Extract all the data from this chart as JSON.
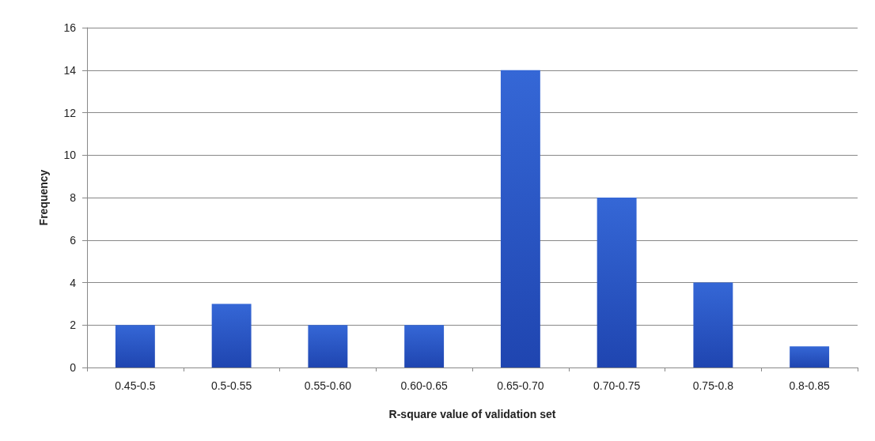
{
  "chart_data": {
    "type": "bar",
    "xlabel": "R-square value of validation set",
    "ylabel": "Frequency",
    "categories": [
      "0.45-0.5",
      "0.5-0.55",
      "0.55-0.60",
      "0.60-0.65",
      "0.65-0.70",
      "0.70-0.75",
      "0.75-0.8",
      "0.8-0.85"
    ],
    "values": [
      2,
      3,
      2,
      2,
      14,
      8,
      4,
      1
    ],
    "color": "#3567d6",
    "ylim": [
      0,
      16
    ],
    "yticks": [
      0,
      2,
      4,
      6,
      8,
      10,
      12,
      14,
      16
    ],
    "grid": "y"
  }
}
